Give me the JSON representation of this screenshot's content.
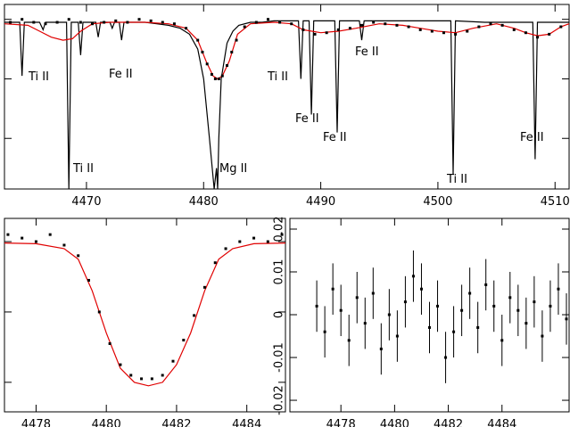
{
  "chart_data": [
    {
      "type": "line",
      "xlim": [
        4463,
        4511.2
      ],
      "ylim": [
        0.43,
        1.05
      ],
      "xticks": [
        4470,
        4480,
        4490,
        4500,
        4510
      ],
      "yticks": [
        0.6,
        0.8,
        1
      ],
      "annotations": [
        "Ti II",
        "Fe II",
        "Ti II",
        "Mg II",
        "Ti II",
        "Fe II",
        "Fe II",
        "Fe II",
        "Ti II",
        "Fe II"
      ],
      "series": [
        {
          "style": "line",
          "color": "#000000",
          "x": [
            4463,
            4464.3,
            4464.5,
            4464.7,
            4465.5,
            4466,
            4466.3,
            4466.5,
            4467,
            4468.3,
            4468.5,
            4468.7,
            4469.3,
            4469.5,
            4469.7,
            4470.8,
            4471,
            4471.2,
            4472,
            4472.2,
            4472.4,
            4472.8,
            4473,
            4473.2,
            4475,
            4476,
            4477,
            4478,
            4478.8,
            4479.5,
            4480,
            4480.5,
            4480.9,
            4481.1,
            4481.2,
            4481.3,
            4481.5,
            4482,
            4482.5,
            4483,
            4484,
            4485,
            4486,
            4487,
            4488.1,
            4488.3,
            4488.5,
            4489,
            4489.2,
            4489.4,
            4491.2,
            4491.4,
            4491.6,
            4493.3,
            4493.5,
            4493.7,
            4495,
            4496,
            4498,
            4501.1,
            4501.3,
            4501.5,
            4504,
            4506,
            4508.1,
            4508.3,
            4508.5,
            4510,
            4511.2
          ],
          "values": [
            0.99,
            0.99,
            0.81,
            0.99,
            0.99,
            0.99,
            0.965,
            0.99,
            0.99,
            0.99,
            0.43,
            0.99,
            0.99,
            0.88,
            0.99,
            0.99,
            0.94,
            0.99,
            0.99,
            0.97,
            0.99,
            0.99,
            0.93,
            0.99,
            0.99,
            0.985,
            0.98,
            0.97,
            0.95,
            0.9,
            0.8,
            0.6,
            0.43,
            0.5,
            0.43,
            0.6,
            0.8,
            0.92,
            0.96,
            0.98,
            0.99,
            0.99,
            0.995,
            0.995,
            0.995,
            0.8,
            0.995,
            0.995,
            0.68,
            0.995,
            0.995,
            0.62,
            0.995,
            0.995,
            0.93,
            0.995,
            0.995,
            0.995,
            0.995,
            0.995,
            0.48,
            0.995,
            0.99,
            0.99,
            0.99,
            0.53,
            0.99,
            0.99,
            0.99
          ]
        },
        {
          "style": "line",
          "color": "#e00000",
          "x": [
            4463,
            4465,
            4466,
            4467,
            4468,
            4468.8,
            4469.5,
            4470.5,
            4472,
            4475,
            4477,
            4478.5,
            4479.5,
            4480.2,
            4480.8,
            4481.2,
            4481.6,
            4482.2,
            4482.9,
            4484,
            4486,
            4487.5,
            4488.5,
            4490,
            4491.5,
            4493,
            4495,
            4497,
            4498.5,
            4500,
            4501.5,
            4503,
            4505,
            4506.5,
            4507.5,
            4508.5,
            4509.5,
            4510.5,
            4511.2
          ],
          "values": [
            0.985,
            0.98,
            0.96,
            0.94,
            0.93,
            0.935,
            0.96,
            0.985,
            0.99,
            0.99,
            0.985,
            0.97,
            0.93,
            0.86,
            0.81,
            0.8,
            0.81,
            0.86,
            0.95,
            0.985,
            0.99,
            0.985,
            0.965,
            0.955,
            0.96,
            0.97,
            0.985,
            0.98,
            0.97,
            0.96,
            0.955,
            0.97,
            0.985,
            0.97,
            0.955,
            0.945,
            0.95,
            0.975,
            0.985
          ]
        },
        {
          "style": "dots",
          "color": "#000000",
          "x": [
            4463.5,
            4464.5,
            4465.5,
            4466.5,
            4467.5,
            4468.5,
            4469.5,
            4470.5,
            4471.5,
            4472.5,
            4473.5,
            4474.5,
            4475.5,
            4476.5,
            4477.5,
            4478.5,
            4479.5,
            4479.9,
            4480.3,
            4480.7,
            4481,
            4481.3,
            4481.6,
            4482,
            4482.4,
            4482.8,
            4483.5,
            4484.5,
            4485.5,
            4486.5,
            4487.5,
            4488.5,
            4489.5,
            4490.5,
            4491.5,
            4492.5,
            4493.5,
            4494.5,
            4495.5,
            4496.5,
            4497.5,
            4498.5,
            4499.5,
            4500.5,
            4501.5,
            4502.5,
            4503.5,
            4504.5,
            4505.5,
            4506.5,
            4507.5,
            4508.5,
            4509.5,
            4510.5
          ],
          "values": [
            0.99,
            1,
            0.99,
            0.985,
            0.99,
            1,
            0.99,
            0.985,
            0.99,
            0.995,
            0.99,
            1,
            0.995,
            0.99,
            0.985,
            0.97,
            0.93,
            0.89,
            0.85,
            0.815,
            0.8,
            0.8,
            0.81,
            0.845,
            0.89,
            0.93,
            0.975,
            0.99,
            1,
            0.99,
            0.985,
            0.965,
            0.95,
            0.955,
            0.965,
            0.97,
            0.98,
            0.99,
            0.985,
            0.98,
            0.975,
            0.965,
            0.96,
            0.955,
            0.95,
            0.96,
            0.975,
            0.985,
            0.98,
            0.965,
            0.955,
            0.94,
            0.95,
            0.975
          ]
        }
      ]
    },
    {
      "type": "line",
      "xlim": [
        4477.1,
        4485.1
      ],
      "ylim": [
        0.758,
        1.033
      ],
      "xticks": [
        4478,
        4480,
        4482,
        4484
      ],
      "yticks": [
        0.8,
        0.9,
        1
      ],
      "series": [
        {
          "style": "line",
          "color": "#e00000",
          "x": [
            4477.1,
            4478,
            4478.8,
            4479.2,
            4479.6,
            4480,
            4480.4,
            4480.8,
            4481.2,
            4481.6,
            4482,
            4482.4,
            4482.8,
            4483.2,
            4483.6,
            4484.2,
            4485.1
          ],
          "values": [
            0.998,
            0.997,
            0.99,
            0.975,
            0.93,
            0.87,
            0.82,
            0.8,
            0.795,
            0.8,
            0.825,
            0.87,
            0.93,
            0.975,
            0.99,
            0.997,
            0.998
          ]
        },
        {
          "style": "dots",
          "color": "#000000",
          "x": [
            4477.2,
            4477.6,
            4478,
            4478.4,
            4478.8,
            4479.2,
            4479.5,
            4479.8,
            4480.1,
            4480.4,
            4480.7,
            4481,
            4481.3,
            4481.6,
            4481.9,
            4482.2,
            4482.5,
            4482.8,
            4483.1,
            4483.4,
            4483.8,
            4484.2,
            4484.6,
            4485
          ],
          "values": [
            1.01,
            1.005,
            1,
            1.01,
            0.995,
            0.98,
            0.945,
            0.9,
            0.855,
            0.825,
            0.81,
            0.805,
            0.805,
            0.81,
            0.83,
            0.86,
            0.895,
            0.935,
            0.97,
            0.99,
            1,
            1.005,
            1,
            1.01
          ]
        }
      ]
    },
    {
      "type": "errorbar",
      "xlim": [
        4476.1,
        4486.5
      ],
      "ylim": [
        -0.0227,
        0.0225
      ],
      "xticks": [
        4478,
        4480,
        4482,
        4484
      ],
      "yticks": [
        -0.02,
        -0.01,
        0,
        0.01,
        0.02
      ],
      "series": [
        {
          "style": "errorbar",
          "color": "#000000",
          "x": [
            4477.1,
            4477.4,
            4477.7,
            4478,
            4478.3,
            4478.6,
            4478.9,
            4479.2,
            4479.5,
            4479.8,
            4480.1,
            4480.4,
            4480.7,
            4481,
            4481.3,
            4481.6,
            4481.9,
            4482.2,
            4482.5,
            4482.8,
            4483.1,
            4483.4,
            4483.7,
            4484,
            4484.3,
            4484.6,
            4484.9,
            4485.2,
            4485.5,
            4485.8,
            4486.1,
            4486.4
          ],
          "values": [
            0.002,
            -0.004,
            0.006,
            0.001,
            -0.006,
            0.004,
            -0.002,
            0.005,
            -0.008,
            0,
            -0.005,
            0.003,
            0.009,
            0.006,
            -0.003,
            0.002,
            -0.01,
            -0.004,
            0.001,
            0.005,
            -0.003,
            0.007,
            0.002,
            -0.006,
            0.004,
            0.001,
            -0.002,
            0.003,
            -0.005,
            0.002,
            0.006,
            -0.001
          ],
          "errors": [
            0.006,
            0.006,
            0.006,
            0.006,
            0.006,
            0.006,
            0.006,
            0.006,
            0.006,
            0.006,
            0.006,
            0.006,
            0.006,
            0.006,
            0.006,
            0.006,
            0.006,
            0.006,
            0.006,
            0.006,
            0.006,
            0.006,
            0.006,
            0.006,
            0.006,
            0.006,
            0.006,
            0.006,
            0.006,
            0.006,
            0.006,
            0.006
          ]
        }
      ]
    }
  ]
}
